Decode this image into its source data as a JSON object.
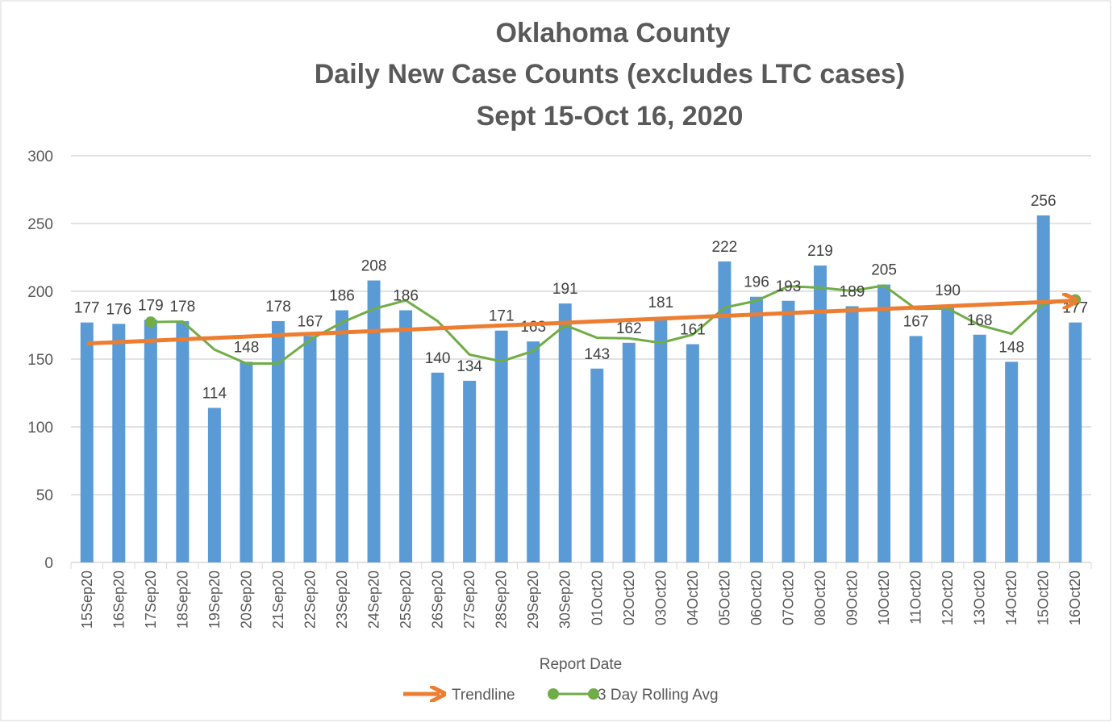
{
  "chart_data": {
    "type": "bar",
    "title": [
      "Oklahoma County",
      "Daily New Case Counts (excludes LTC cases)",
      "Sept 15-Oct 16, 2020"
    ],
    "x_label": "Report Date",
    "categories": [
      "15Sep20",
      "16Sep20",
      "17Sep20",
      "18Sep20",
      "19Sep20",
      "20Sep20",
      "21Sep20",
      "22Sep20",
      "23Sep20",
      "24Sep20",
      "25Sep20",
      "26Sep20",
      "27Sep20",
      "28Sep20",
      "29Sep20",
      "30Sep20",
      "01Oct20",
      "02Oct20",
      "03Oct20",
      "04Oct20",
      "05Oct20",
      "06Oct20",
      "07Oct20",
      "08Oct20",
      "09Oct20",
      "10Oct20",
      "11Oct20",
      "12Oct20",
      "13Oct20",
      "14Oct20",
      "15Oct20",
      "16Oct20"
    ],
    "values": [
      177,
      176,
      179,
      178,
      114,
      148,
      178,
      167,
      186,
      208,
      186,
      140,
      134,
      171,
      163,
      191,
      143,
      162,
      181,
      161,
      222,
      196,
      193,
      219,
      189,
      205,
      167,
      190,
      168,
      148,
      256,
      177
    ],
    "color": "#5b9bd5",
    "rolling": {
      "name": "3 Day Rolling Avg",
      "color": "#70ad47",
      "values": [
        null,
        null,
        177.3,
        177.7,
        157,
        146.7,
        146.7,
        164.3,
        177,
        187,
        193.3,
        178,
        153.3,
        148.3,
        156,
        175,
        165.7,
        165.3,
        162,
        168,
        188,
        193,
        203.7,
        202.7,
        200.3,
        204.3,
        187,
        187.3,
        175,
        168.7,
        190.7,
        193.7
      ]
    },
    "trendline": {
      "name": "Trendline",
      "color": "#ed7d31",
      "start": 161.5,
      "end": 193
    },
    "ylim": [
      0,
      300
    ],
    "yticks": [
      0,
      50,
      100,
      150,
      200,
      250,
      300
    ],
    "grid": true
  }
}
